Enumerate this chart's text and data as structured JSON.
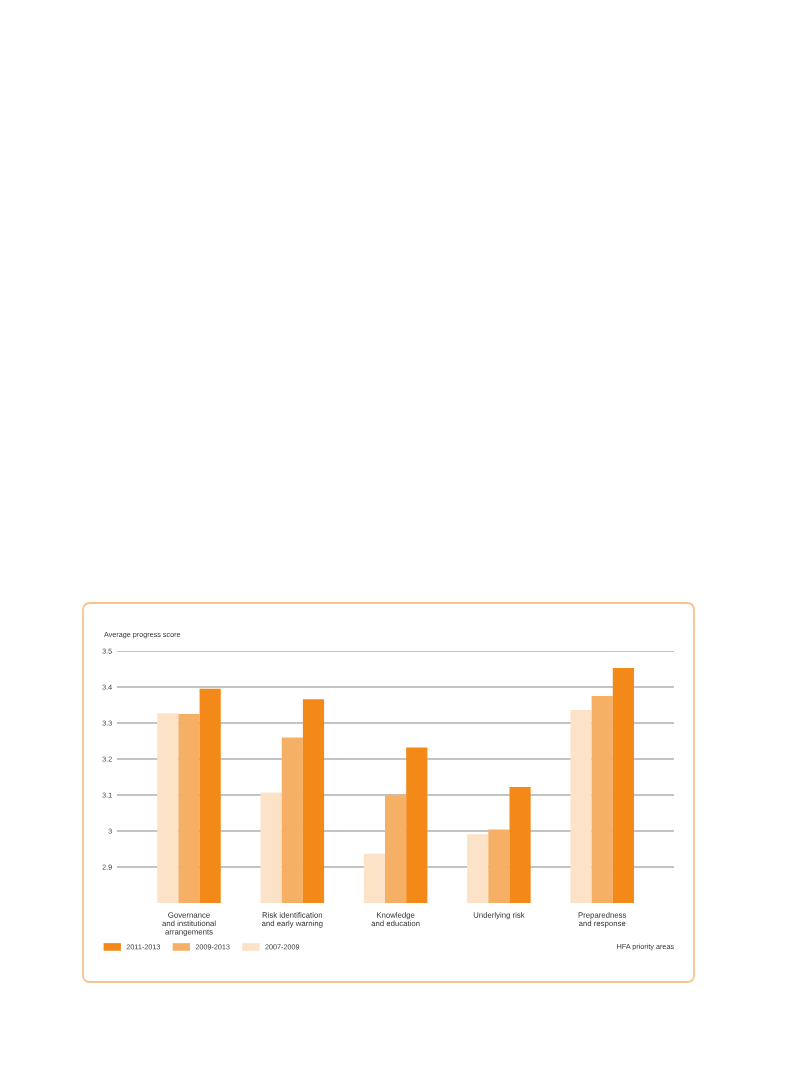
{
  "chart_data": {
    "type": "bar",
    "ylabel": "Average progress score",
    "xlabel": "HFA priority areas",
    "categories": [
      "Governance\nand institutional\narrangements",
      "Risk identification\nand early warning",
      "Knowledge\nand education",
      "Underlying risk",
      "Preparedness\nand response"
    ],
    "series": [
      {
        "name": "2007-2009",
        "color": "#fce3c7",
        "values": [
          3.327,
          3.107,
          2.937,
          2.991,
          3.336
        ]
      },
      {
        "name": "2009-2013",
        "color": "#f6b066",
        "values": [
          3.325,
          3.26,
          3.101,
          3.004,
          3.375
        ]
      },
      {
        "name": "2011-2013",
        "color": "#f28918",
        "values": [
          3.395,
          3.366,
          3.232,
          3.122,
          3.453
        ]
      }
    ],
    "ylim": [
      2.8,
      3.5
    ],
    "yticks": [
      2.9,
      3,
      3.1,
      3.2,
      3.3,
      3.4,
      3.5
    ],
    "grid": "y",
    "legend": "bottom left"
  }
}
